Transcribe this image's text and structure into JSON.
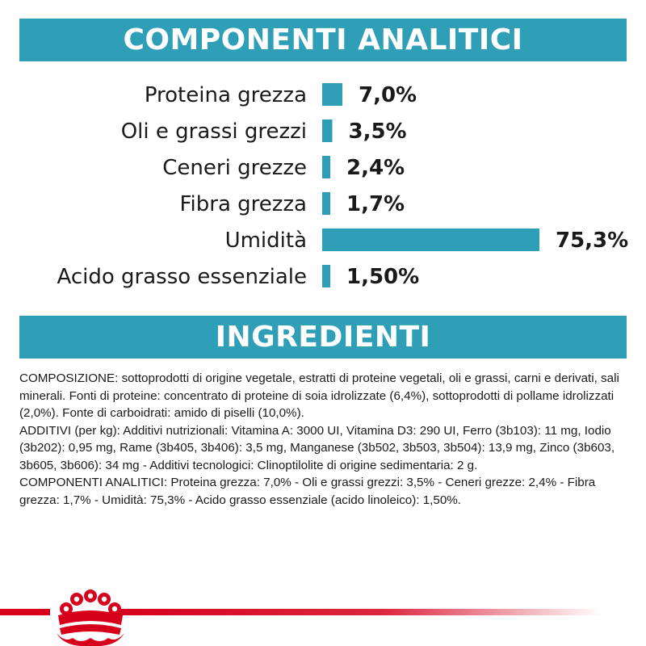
{
  "sections": {
    "analytic_title": "COMPONENTI ANALITICI",
    "ingredients_title": "INGREDIENTI"
  },
  "colors": {
    "accent": "#2f9fb8",
    "bar": "#2e9fb6",
    "brand_red": "#d6001c",
    "text": "#1a1a1a"
  },
  "chart_data": {
    "type": "bar",
    "orientation": "horizontal",
    "categories": [
      "Proteina grezza",
      "Oli e grassi grezzi",
      "Ceneri grezze",
      "Fibra grezza",
      "Umidità",
      "Acido grasso essenziale"
    ],
    "values": [
      7.0,
      3.5,
      2.4,
      1.7,
      75.3,
      1.5
    ],
    "value_labels": [
      "7,0%",
      "3,5%",
      "2,4%",
      "1,7%",
      "75,3%",
      "1,50%"
    ],
    "xlim": [
      0,
      75.3
    ],
    "grid": false,
    "legend": "none"
  },
  "ingredients": {
    "paragraphs": [
      "COMPOSIZIONE: sottoprodotti di origine vegetale, estratti di proteine vegetali, oli e grassi, carni e derivati, sali minerali. Fonti di proteine: concentrato di proteine di soia idrolizzate (6,4%), sottoprodotti di pollame idrolizzati (2,0%). Fonte di carboidrati: amido di piselli (10,0%).",
      "ADDITIVI (per kg): Additivi nutrizionali: Vitamina A: 3000 UI, Vitamina D3: 290 UI, Ferro (3b103): 11 mg, Iodio (3b202): 0,95 mg, Rame (3b405, 3b406): 3,5 mg, Manganese (3b502, 3b503, 3b504): 13,9 mg, Zinco (3b603, 3b605, 3b606): 34 mg - Additivi tecnologici: Clinoptilolite di origine sedimentaria: 2 g.",
      "COMPONENTI ANALITICI: Proteina grezza: 7,0% - Oli e grassi grezzi: 3,5% - Ceneri grezze: 2,4% - Fibra grezza: 1,7% - Umidità: 75,3% - Acido grasso essenziale (acido linoleico): 1,50%."
    ]
  },
  "footer": {
    "logo_icon": "royal-canin-crown-icon"
  }
}
